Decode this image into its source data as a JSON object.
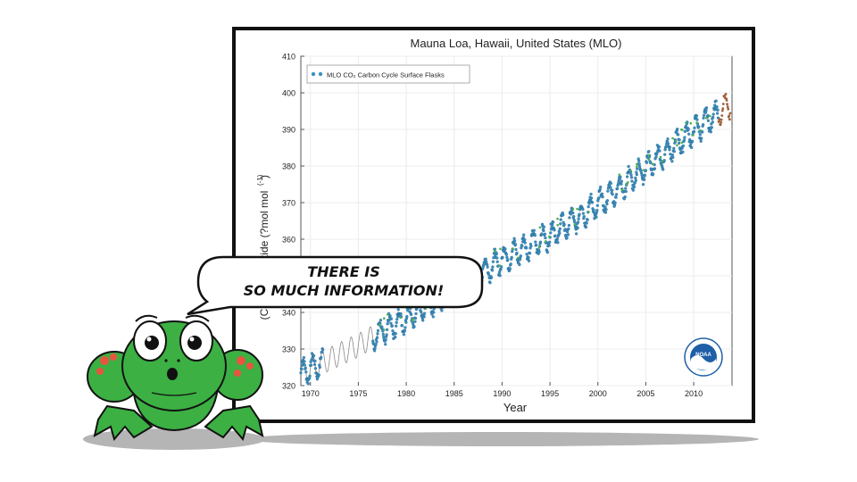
{
  "speech": {
    "line1": "THERE IS",
    "line2": "SO MUCH INFORMATION!"
  },
  "character": {
    "name": "frog",
    "color": "#3cb043"
  },
  "logo": {
    "text": "NOAA",
    "color": "#1f5fa8"
  },
  "chart_data": {
    "type": "scatter",
    "title": "Mauna Loa, Hawaii, United States (MLO)",
    "xlabel": "Year",
    "ylabel": "(CO2) Carbon Dioxide (?mol mol^-1)",
    "ylabel_visible": "on Dioxide (?mol mol",
    "ylabel_prefix_visible": "(C",
    "ylabel_superscript": "(-1)",
    "xlim": [
      1969,
      2014
    ],
    "ylim": [
      320,
      410
    ],
    "x_ticks": [
      1970,
      1975,
      1980,
      1985,
      1990,
      1995,
      2000,
      2005,
      2010
    ],
    "y_ticks": [
      320,
      330,
      340,
      350,
      360,
      370,
      380,
      390,
      400,
      410
    ],
    "grid": true,
    "legend": {
      "position": "top-left",
      "label": "MLO CO₂ Carbon Cycle Surface Flasks"
    },
    "series": [
      {
        "name": "MLO CO₂ Carbon Cycle Surface Flasks",
        "color": "#3c8fc0",
        "trend": {
          "x": [
            1969,
            1975,
            1980,
            1985,
            1990,
            1995,
            2000,
            2005,
            2010,
            2013.5
          ],
          "y": [
            323.5,
            331,
            338.5,
            346,
            354.5,
            361,
            369.5,
            379.5,
            389.5,
            396.5
          ]
        },
        "seasonal_amplitude": 3.2
      }
    ]
  }
}
